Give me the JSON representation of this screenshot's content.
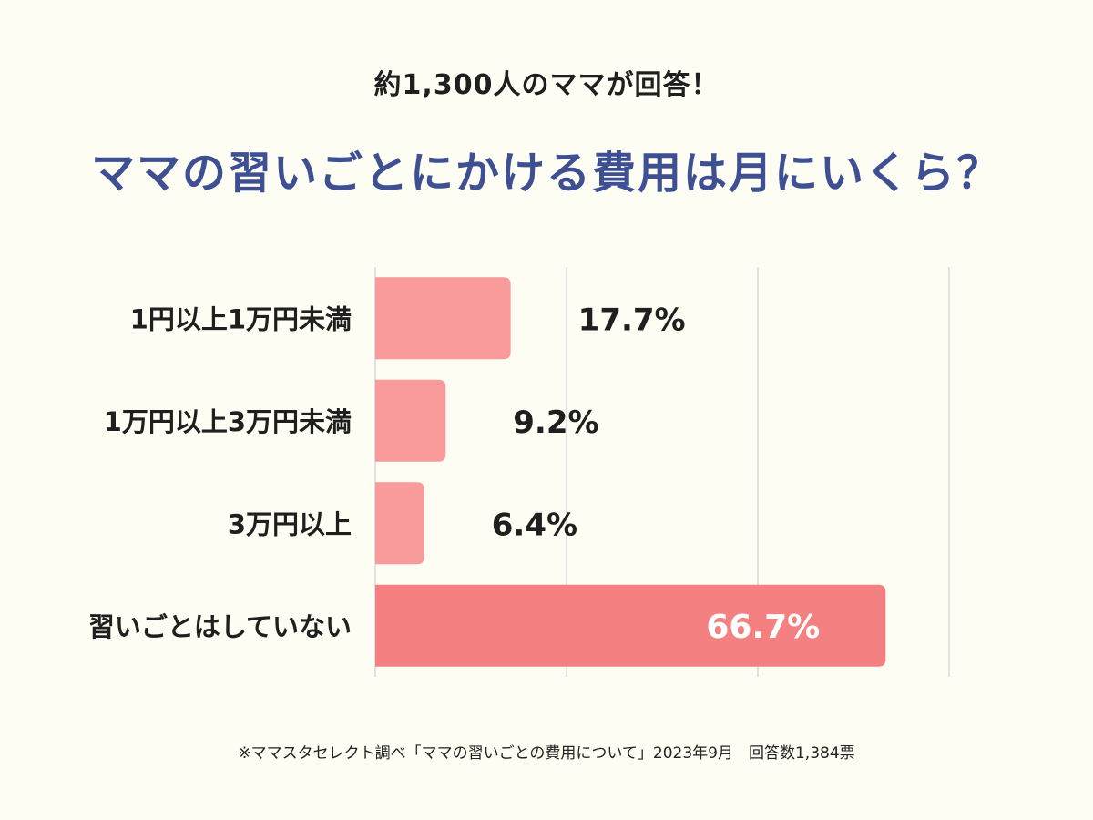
{
  "header": {
    "subtitle": "約1,300人のママが回答！",
    "title": "ママの習いごとにかける費用は月にいくら？"
  },
  "footnote": "※ママスタセレクト調べ「ママの習いごとの費用について」2023年9月　回答数1,384票",
  "colors": {
    "bar_light": "#f99a9b",
    "bar_highlight": "#f48082",
    "title": "#3e4f92",
    "grid": "#cfcfcf"
  },
  "chart_data": {
    "type": "bar",
    "orientation": "horizontal",
    "categories": [
      "1円以上1万円未満",
      "1万円以上3万円未満",
      "3万円以上",
      "習いごとはしていない"
    ],
    "values": [
      17.7,
      9.2,
      6.4,
      66.7
    ],
    "value_labels": [
      "17.7%",
      "9.2%",
      "6.4%",
      "66.7%"
    ],
    "highlight_index": 3,
    "xlim": [
      0,
      75
    ],
    "grid": true
  }
}
